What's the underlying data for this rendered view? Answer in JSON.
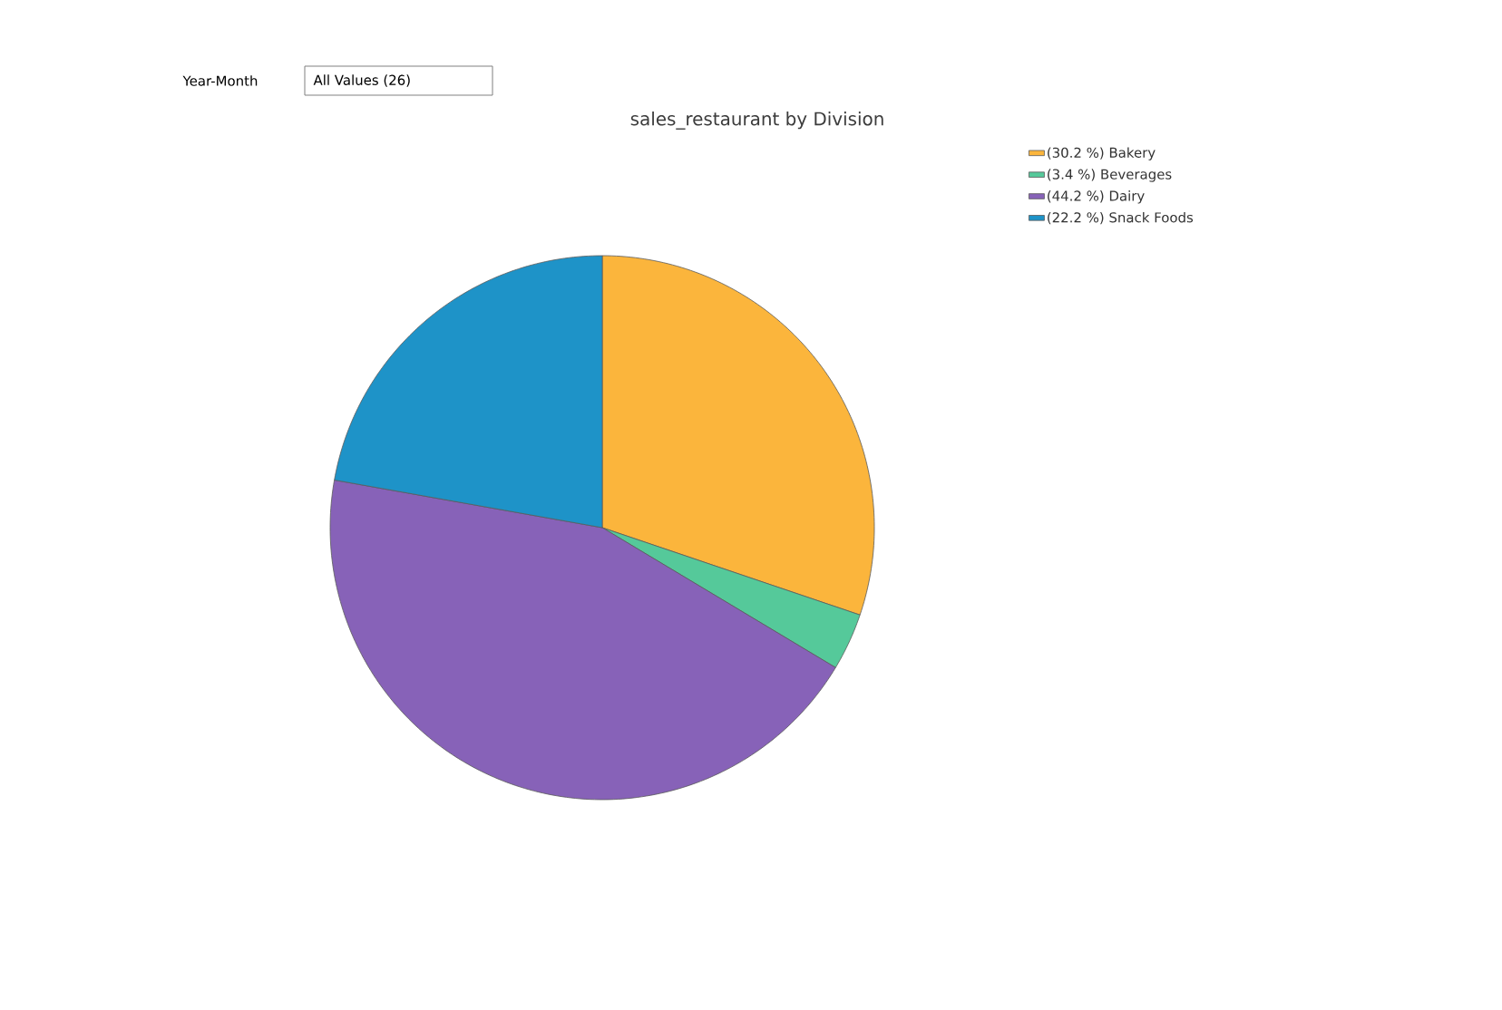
{
  "chart_data": {
    "type": "pie",
    "title": "sales_restaurant by Division",
    "categories": [
      "(30.2 %) Bakery",
      "(3.4 %) Beverages",
      "(44.2 %) Dairy",
      "(22.2 %) Snack Foods"
    ],
    "values": [
      30.2,
      3.4,
      44.2,
      22.2
    ],
    "colors": [
      "#fbb53c",
      "#55c99a",
      "#8762b8",
      "#1e93c8"
    ],
    "legend": "top right",
    "annotations": [
      "Year-Month",
      "All Values (26)"
    ]
  }
}
